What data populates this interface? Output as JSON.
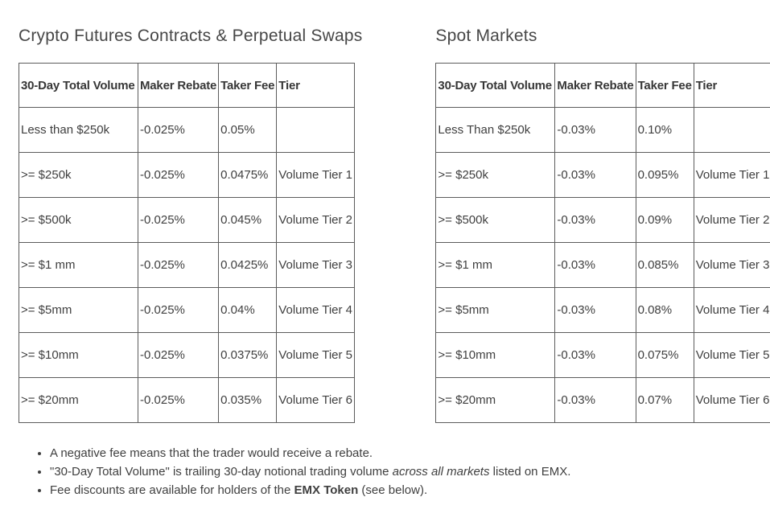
{
  "tables": [
    {
      "title": "Crypto Futures Contracts & Perpetual Swaps",
      "headers": [
        "30-Day Total Volume",
        "Maker Rebate",
        "Taker Fee",
        "Tier"
      ],
      "rows": [
        [
          "Less than $250k",
          "-0.025%",
          "0.05%",
          ""
        ],
        [
          ">= $250k",
          "-0.025%",
          "0.0475%",
          "Volume Tier 1"
        ],
        [
          ">= $500k",
          "-0.025%",
          "0.045%",
          "Volume Tier 2"
        ],
        [
          ">= $1 mm",
          "-0.025%",
          "0.0425%",
          "Volume Tier 3"
        ],
        [
          ">= $5mm",
          "-0.025%",
          "0.04%",
          "Volume Tier 4"
        ],
        [
          ">= $10mm",
          "-0.025%",
          "0.0375%",
          "Volume Tier 5"
        ],
        [
          ">= $20mm",
          "-0.025%",
          "0.035%",
          "Volume Tier 6"
        ]
      ]
    },
    {
      "title": "Spot Markets",
      "headers": [
        "30-Day Total Volume",
        "Maker Rebate",
        "Taker Fee",
        "Tier"
      ],
      "rows": [
        [
          "Less Than $250k",
          "-0.03%",
          "0.10%",
          ""
        ],
        [
          ">= $250k",
          "-0.03%",
          "0.095%",
          "Volume Tier 1"
        ],
        [
          ">= $500k",
          "-0.03%",
          "0.09%",
          "Volume Tier 2"
        ],
        [
          ">= $1 mm",
          "-0.03%",
          "0.085%",
          "Volume Tier 3"
        ],
        [
          ">= $5mm",
          "-0.03%",
          "0.08%",
          "Volume Tier 4"
        ],
        [
          ">= $10mm",
          "-0.03%",
          "0.075%",
          "Volume Tier 5"
        ],
        [
          ">= $20mm",
          "-0.03%",
          "0.07%",
          "Volume Tier 6"
        ]
      ]
    }
  ],
  "notes": [
    {
      "parts": [
        {
          "style": "normal",
          "text": "A negative fee means that the trader would receive a rebate."
        }
      ]
    },
    {
      "parts": [
        {
          "style": "normal",
          "text": "\"30-Day Total Volume\" is trailing 30-day notional trading volume "
        },
        {
          "style": "italic",
          "text": "across all markets"
        },
        {
          "style": "normal",
          "text": " listed on EMX."
        }
      ]
    },
    {
      "parts": [
        {
          "style": "normal",
          "text": "Fee discounts are available for holders of the "
        },
        {
          "style": "bold",
          "text": "EMX Token"
        },
        {
          "style": "normal",
          "text": " (see below)."
        }
      ]
    }
  ]
}
